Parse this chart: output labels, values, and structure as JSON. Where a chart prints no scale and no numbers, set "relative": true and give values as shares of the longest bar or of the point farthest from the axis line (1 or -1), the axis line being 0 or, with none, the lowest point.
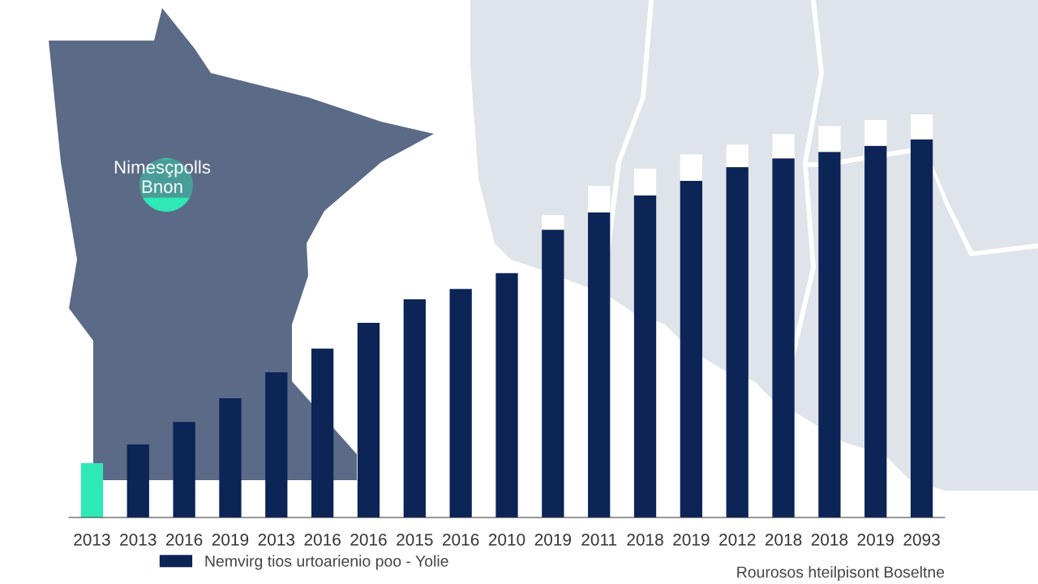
{
  "chart_data": {
    "type": "bar",
    "relative": true,
    "stacked": true,
    "legend": "bottom left",
    "categories": [
      "2013",
      "2013",
      "2016",
      "2019",
      "2013",
      "2016",
      "2016",
      "2015",
      "2016",
      "2010",
      "2019",
      "2011",
      "2018",
      "2019",
      "2012",
      "2018",
      "2018",
      "2019",
      "2093"
    ],
    "series": [
      {
        "name": "Nemvirg tios urtoarienio poo - Yolie",
        "color": "#0c2456",
        "colors": [
          "#2ee8b6",
          "#0c2456",
          "#0c2456",
          "#0c2456",
          "#0c2456",
          "#0c2456",
          "#0c2456",
          "#0c2456",
          "#0c2456",
          "#0c2456",
          "#0c2456",
          "#0c2456",
          "#0c2456",
          "#0c2456",
          "#0c2456",
          "#0c2456",
          "#0c2456",
          "#0c2456",
          "#0c2456"
        ],
        "values": [
          0.135,
          0.181,
          0.237,
          0.296,
          0.36,
          0.419,
          0.483,
          0.541,
          0.567,
          0.606,
          0.714,
          0.757,
          0.799,
          0.835,
          0.869,
          0.891,
          0.907,
          0.922,
          0.938
        ]
      },
      {
        "color": "#ffffff",
        "values": [
          null,
          null,
          null,
          null,
          null,
          null,
          null,
          null,
          null,
          null,
          0.036,
          0.066,
          0.066,
          0.066,
          0.056,
          0.06,
          0.064,
          0.064,
          0.062
        ]
      }
    ],
    "annotations": [
      "Nimesçpolls\nBnon",
      "Rourosos hteilpisont Boseltne"
    ]
  }
}
